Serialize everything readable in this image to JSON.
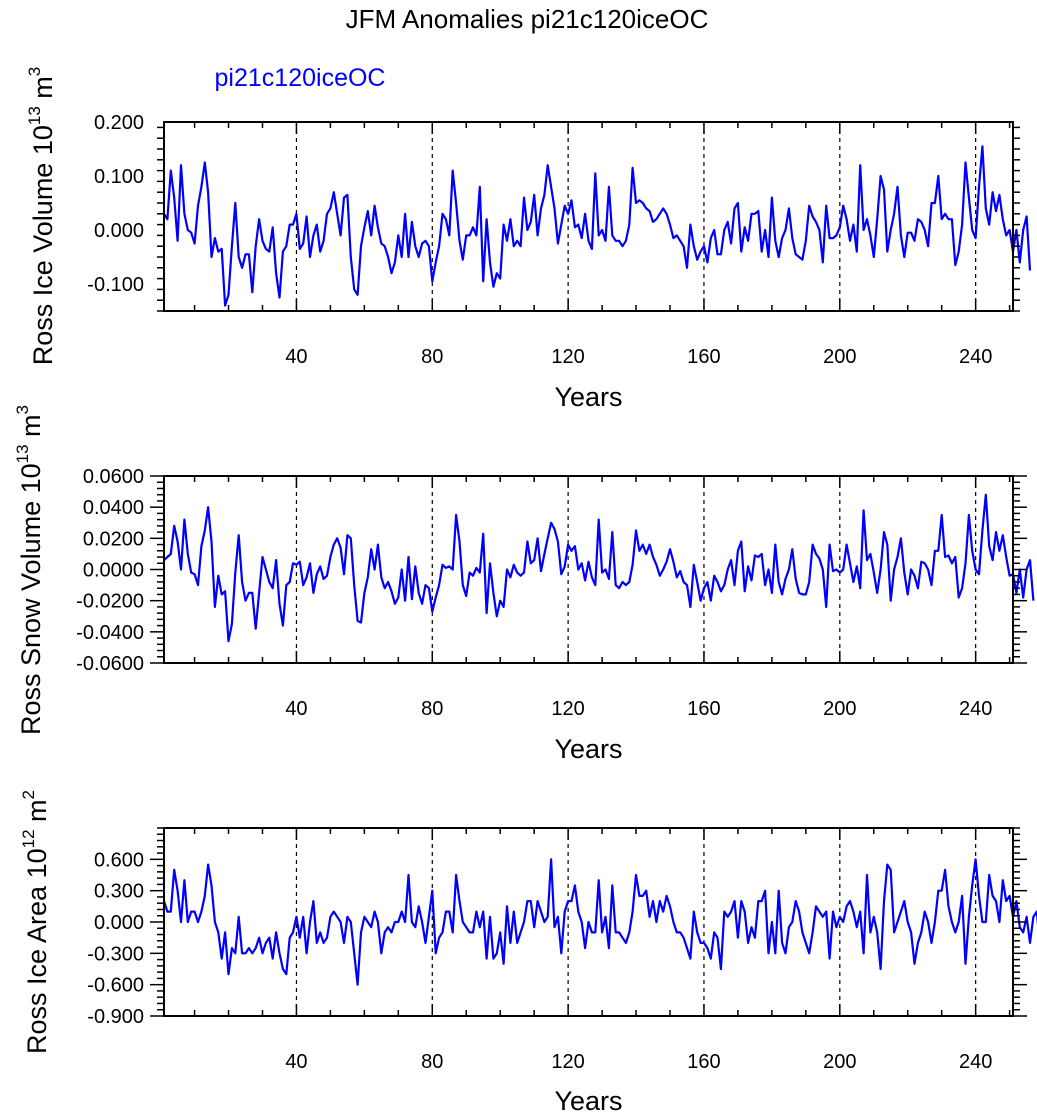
{
  "title": "JFM Anomalies pi21c120iceOC",
  "legend_label": "pi21c120iceOC",
  "colors": {
    "series": "#0000ff",
    "axes": "#000000",
    "grid": "#000000",
    "background": "#ffffff"
  },
  "chart_data": [
    {
      "type": "line",
      "title": "JFM Anomalies pi21c120iceOC",
      "legend": "pi21c120iceOC",
      "xlabel": "Years",
      "ylabel_main": "Ross Ice Volume 10",
      "ylabel_exp": "13",
      "ylabel_unit": " m",
      "ylabel_unit_exp": "3",
      "xlim": [
        1,
        251
      ],
      "ylim": [
        -0.15,
        0.2
      ],
      "xticks": [
        40,
        80,
        120,
        160,
        200,
        240
      ],
      "xtick_labels": [
        "40",
        "80",
        "120",
        "160",
        "200",
        "240"
      ],
      "yticks": [
        -0.1,
        0.0,
        0.1,
        0.2
      ],
      "ytick_labels": [
        "-0.100",
        "0.000",
        "0.100",
        "0.200"
      ],
      "grid": "vertical dashed lines at x ticks",
      "series": [
        {
          "name": "pi21c120iceOC",
          "values": [
            0.03,
            0.02,
            0.11,
            0.06,
            -0.02,
            0.12,
            0.03,
            0.0,
            -0.005,
            -0.025,
            0.045,
            0.08,
            0.125,
            0.07,
            -0.05,
            -0.015,
            -0.04,
            -0.035,
            -0.14,
            -0.12,
            -0.03,
            0.05,
            -0.05,
            -0.07,
            -0.045,
            -0.045,
            -0.115,
            -0.03,
            0.02,
            -0.02,
            -0.035,
            -0.04,
            0.005,
            -0.08,
            -0.125,
            -0.04,
            -0.03,
            0.01,
            0.01,
            0.03,
            -0.035,
            -0.025,
            0.025,
            -0.05,
            -0.01,
            0.01,
            -0.04,
            -0.02,
            0.03,
            0.04,
            0.07,
            0.03,
            -0.01,
            0.06,
            0.065,
            -0.05,
            -0.11,
            -0.12,
            -0.03,
            0.005,
            0.035,
            -0.01,
            0.045,
            0.005,
            -0.025,
            -0.03,
            -0.05,
            -0.08,
            -0.06,
            -0.01,
            -0.05,
            0.03,
            -0.05,
            0.015,
            -0.03,
            -0.05,
            -0.025,
            -0.02,
            -0.03,
            -0.095,
            -0.06,
            -0.03,
            0.03,
            0.02,
            -0.01,
            0.11,
            0.05,
            -0.02,
            -0.055,
            -0.01,
            -0.01,
            0.005,
            -0.01,
            0.08,
            -0.095,
            0.02,
            -0.06,
            -0.105,
            -0.08,
            -0.09,
            0.01,
            -0.02,
            0.02,
            -0.03,
            -0.02,
            -0.03,
            0.06,
            0.0,
            0.015,
            0.065,
            -0.01,
            0.04,
            0.065,
            0.12,
            0.08,
            0.04,
            -0.025,
            0.01,
            0.045,
            0.03,
            0.055,
            0.005,
            0.01,
            -0.015,
            0.03,
            -0.02,
            -0.035,
            0.105,
            -0.01,
            0.0,
            -0.02,
            0.08,
            -0.01,
            -0.02,
            -0.02,
            -0.03,
            -0.02,
            0.01,
            0.115,
            0.05,
            0.055,
            0.05,
            0.04,
            0.035,
            0.015,
            0.02,
            0.03,
            0.04,
            0.03,
            0.01,
            -0.015,
            -0.01,
            -0.02,
            -0.03,
            -0.07,
            0.01,
            -0.03,
            -0.055,
            -0.04,
            -0.03,
            -0.06,
            -0.015,
            0.0,
            -0.045,
            -0.045,
            0.0,
            0.015,
            -0.025,
            0.04,
            0.05,
            -0.04,
            0.005,
            -0.02,
            0.03,
            0.03,
            0.035,
            -0.04,
            0.0,
            -0.05,
            0.06,
            -0.02,
            -0.05,
            -0.015,
            0.0,
            0.04,
            -0.015,
            -0.045,
            -0.05,
            -0.055,
            -0.02,
            0.045,
            0.025,
            0.015,
            0.0,
            -0.06,
            0.045,
            -0.015,
            -0.015,
            -0.01,
            0.005,
            0.045,
            0.02,
            -0.02,
            0.01,
            -0.04,
            0.12,
            0.0,
            0.02,
            -0.01,
            -0.05,
            0.02,
            0.1,
            0.075,
            -0.04,
            0.0,
            0.03,
            0.08,
            -0.01,
            -0.05,
            -0.005,
            -0.005,
            -0.02,
            0.02,
            0.015,
            0.0,
            -0.03,
            0.05,
            0.05,
            0.1,
            0.02,
            0.03,
            0.02,
            0.02,
            -0.065,
            -0.04,
            0.01,
            0.125,
            0.06,
            0.0,
            -0.015,
            0.08,
            0.155,
            0.04,
            0.01,
            0.07,
            0.035,
            0.065,
            0.02,
            -0.01,
            0.0,
            -0.04,
            0.0,
            -0.06,
            0.0,
            0.025,
            -0.075
          ]
        }
      ]
    },
    {
      "type": "line",
      "xlabel": "Years",
      "ylabel_main": "Ross Snow Volume 10",
      "ylabel_exp": "13",
      "ylabel_unit": " m",
      "ylabel_unit_exp": "3",
      "xlim": [
        1,
        251
      ],
      "ylim": [
        -0.06,
        0.06
      ],
      "xticks": [
        40,
        80,
        120,
        160,
        200,
        240
      ],
      "xtick_labels": [
        "40",
        "80",
        "120",
        "160",
        "200",
        "240"
      ],
      "yticks": [
        -0.06,
        -0.04,
        -0.02,
        0.0,
        0.02,
        0.04,
        0.06
      ],
      "ytick_labels": [
        "-0.0600",
        "-0.0400",
        "-0.0200",
        "0.0000",
        "0.0200",
        "0.0400",
        "0.0600"
      ],
      "grid": "vertical dashed lines at x ticks",
      "series": [
        {
          "name": "pi21c120iceOC",
          "values": [
            0.006,
            0.008,
            0.01,
            0.028,
            0.018,
            0.0,
            0.032,
            0.01,
            -0.002,
            -0.003,
            -0.01,
            0.015,
            0.025,
            0.04,
            0.018,
            -0.024,
            -0.004,
            -0.016,
            -0.014,
            -0.046,
            -0.035,
            -0.002,
            0.022,
            -0.008,
            -0.02,
            -0.015,
            -0.015,
            -0.038,
            -0.015,
            0.008,
            0.0,
            -0.008,
            -0.012,
            0.006,
            -0.022,
            -0.036,
            -0.01,
            -0.008,
            0.004,
            0.003,
            0.005,
            -0.01,
            -0.005,
            0.004,
            -0.015,
            -0.003,
            0.002,
            -0.006,
            -0.004,
            0.008,
            0.016,
            0.02,
            0.014,
            -0.003,
            0.022,
            0.02,
            -0.01,
            -0.033,
            -0.034,
            -0.015,
            -0.005,
            0.013,
            0.0,
            0.016,
            -0.005,
            -0.012,
            -0.008,
            -0.014,
            -0.022,
            -0.018,
            0.0,
            -0.02,
            0.008,
            -0.019,
            0.002,
            -0.015,
            -0.022,
            -0.01,
            -0.012,
            -0.027,
            -0.018,
            -0.01,
            0.003,
            0.001,
            0.002,
            0.0,
            0.035,
            0.018,
            -0.01,
            -0.017,
            -0.002,
            -0.004,
            0.001,
            -0.002,
            0.023,
            -0.028,
            0.004,
            -0.015,
            -0.03,
            -0.02,
            -0.024,
            0.0,
            -0.005,
            0.003,
            -0.002,
            -0.004,
            -0.002,
            0.018,
            0.004,
            0.006,
            0.02,
            -0.001,
            0.01,
            0.02,
            0.03,
            0.026,
            0.018,
            -0.003,
            0.002,
            0.016,
            0.012,
            0.015,
            0.0,
            0.004,
            -0.007,
            0.005,
            -0.005,
            -0.01,
            0.032,
            -0.002,
            0.0,
            -0.006,
            0.024,
            -0.01,
            -0.012,
            -0.008,
            -0.01,
            -0.008,
            0.003,
            0.025,
            0.012,
            0.016,
            0.01,
            0.016,
            0.008,
            0.003,
            -0.004,
            0.0,
            0.005,
            0.013,
            0.005,
            -0.005,
            -0.001,
            -0.008,
            -0.01,
            -0.024,
            0.003,
            -0.008,
            -0.02,
            -0.012,
            -0.008,
            -0.02,
            -0.004,
            -0.008,
            -0.014,
            -0.01,
            0.0,
            0.006,
            -0.01,
            0.012,
            0.018,
            -0.014,
            0.002,
            -0.007,
            0.009,
            0.008,
            0.01,
            -0.01,
            0.0,
            -0.015,
            0.016,
            -0.008,
            -0.016,
            -0.006,
            0.0,
            0.013,
            -0.006,
            -0.015,
            -0.016,
            -0.016,
            -0.008,
            0.016,
            0.01,
            0.007,
            0.0,
            -0.024,
            0.016,
            -0.001,
            0.0,
            -0.002,
            0.0,
            0.016,
            0.004,
            -0.008,
            0.002,
            -0.012,
            0.038,
            0.006,
            0.01,
            -0.002,
            -0.015,
            0.0,
            0.024,
            0.016,
            -0.02,
            0.0,
            0.008,
            0.02,
            -0.002,
            -0.016,
            0.0,
            -0.004,
            -0.012,
            0.005,
            0.004,
            0.0,
            -0.01,
            0.012,
            0.012,
            0.035,
            0.008,
            0.009,
            0.004,
            0.008,
            -0.018,
            -0.012,
            0.004,
            0.035,
            0.012,
            0.0,
            -0.003,
            0.025,
            0.048,
            0.015,
            0.006,
            0.024,
            0.012,
            0.022,
            0.008,
            -0.004,
            -0.003,
            -0.015,
            0.0,
            -0.018,
            0.0,
            0.006,
            -0.02
          ]
        }
      ]
    },
    {
      "type": "line",
      "xlabel": "Years",
      "ylabel_main": "Ross Ice Area 10",
      "ylabel_exp": "12",
      "ylabel_unit": " m",
      "ylabel_unit_exp": "2",
      "xlim": [
        1,
        251
      ],
      "ylim": [
        -0.9,
        0.9
      ],
      "xticks": [
        40,
        80,
        120,
        160,
        200,
        240
      ],
      "xtick_labels": [
        "40",
        "80",
        "120",
        "160",
        "200",
        "240"
      ],
      "yticks": [
        -0.9,
        -0.6,
        -0.3,
        0.0,
        0.3,
        0.6
      ],
      "ytick_labels": [
        "-0.900",
        "-0.600",
        "-0.300",
        "0.000",
        "0.300",
        "0.600"
      ],
      "grid": "vertical dashed lines at x ticks",
      "series": [
        {
          "name": "pi21c120iceOC",
          "values": [
            0.2,
            0.1,
            0.1,
            0.5,
            0.3,
            0.0,
            0.4,
            0.0,
            0.1,
            0.1,
            0.0,
            0.1,
            0.25,
            0.55,
            0.35,
            0.0,
            -0.1,
            -0.35,
            -0.1,
            -0.5,
            -0.25,
            -0.3,
            0.05,
            -0.3,
            -0.3,
            -0.25,
            -0.3,
            -0.25,
            -0.15,
            -0.3,
            -0.2,
            -0.15,
            -0.35,
            -0.1,
            -0.3,
            -0.45,
            -0.5,
            -0.15,
            -0.1,
            0.05,
            -0.15,
            0.05,
            -0.3,
            0.0,
            0.2,
            -0.2,
            -0.1,
            -0.2,
            -0.15,
            0.05,
            0.1,
            0.05,
            0.0,
            -0.2,
            0.05,
            0.0,
            -0.3,
            -0.6,
            -0.1,
            0.05,
            0.0,
            -0.05,
            0.1,
            0.0,
            -0.3,
            -0.1,
            -0.05,
            -0.1,
            0.0,
            0.0,
            0.1,
            0.0,
            0.45,
            0.0,
            -0.05,
            0.15,
            0.0,
            -0.2,
            0.05,
            0.3,
            -0.3,
            -0.15,
            -0.1,
            0.1,
            0.1,
            -0.1,
            0.45,
            0.2,
            0.0,
            -0.05,
            -0.1,
            -0.1,
            0.1,
            -0.05,
            0.1,
            -0.35,
            0.05,
            -0.35,
            -0.3,
            -0.1,
            -0.4,
            0.15,
            -0.2,
            0.1,
            -0.2,
            -0.1,
            0.0,
            0.2,
            0.2,
            -0.05,
            0.2,
            0.1,
            0.0,
            0.05,
            0.6,
            -0.05,
            0.05,
            -0.3,
            0.1,
            0.2,
            0.2,
            0.35,
            0.1,
            0.0,
            -0.25,
            0.0,
            -0.1,
            -0.1,
            0.4,
            -0.1,
            0.05,
            -0.25,
            0.35,
            -0.1,
            -0.1,
            -0.15,
            -0.2,
            -0.1,
            0.1,
            0.45,
            0.25,
            0.25,
            0.3,
            0.05,
            0.2,
            0.0,
            0.2,
            0.1,
            0.25,
            0.15,
            0.0,
            -0.1,
            -0.1,
            -0.15,
            -0.25,
            -0.35,
            0.1,
            -0.1,
            -0.2,
            -0.2,
            -0.25,
            -0.35,
            -0.1,
            -0.15,
            -0.45,
            0.1,
            0.05,
            0.1,
            0.2,
            -0.15,
            0.2,
            0.1,
            -0.2,
            -0.05,
            -0.15,
            0.2,
            0.2,
            0.3,
            -0.3,
            0.0,
            -0.3,
            0.3,
            -0.2,
            -0.3,
            -0.05,
            0.0,
            0.2,
            0.1,
            -0.1,
            -0.2,
            -0.3,
            -0.1,
            0.15,
            0.1,
            0.05,
            0.1,
            -0.35,
            0.1,
            -0.05,
            0.05,
            0.0,
            0.15,
            0.2,
            0.1,
            -0.05,
            0.1,
            -0.3,
            0.45,
            -0.1,
            0.05,
            -0.1,
            -0.45,
            0.2,
            0.55,
            0.5,
            -0.1,
            0.0,
            0.1,
            0.2,
            0.0,
            -0.1,
            -0.4,
            -0.2,
            -0.1,
            0.1,
            0.0,
            -0.2,
            0.0,
            0.3,
            0.3,
            0.5,
            0.15,
            0.0,
            -0.1,
            0.0,
            0.25,
            -0.4,
            0.05,
            0.35,
            0.6,
            0.25,
            0.0,
            0.0,
            0.45,
            0.25,
            0.2,
            0.0,
            0.4,
            0.2,
            0.25,
            0.05,
            0.2,
            -0.05,
            -0.1,
            0.05,
            -0.2,
            0.05,
            0.1,
            -0.25
          ]
        }
      ]
    }
  ]
}
